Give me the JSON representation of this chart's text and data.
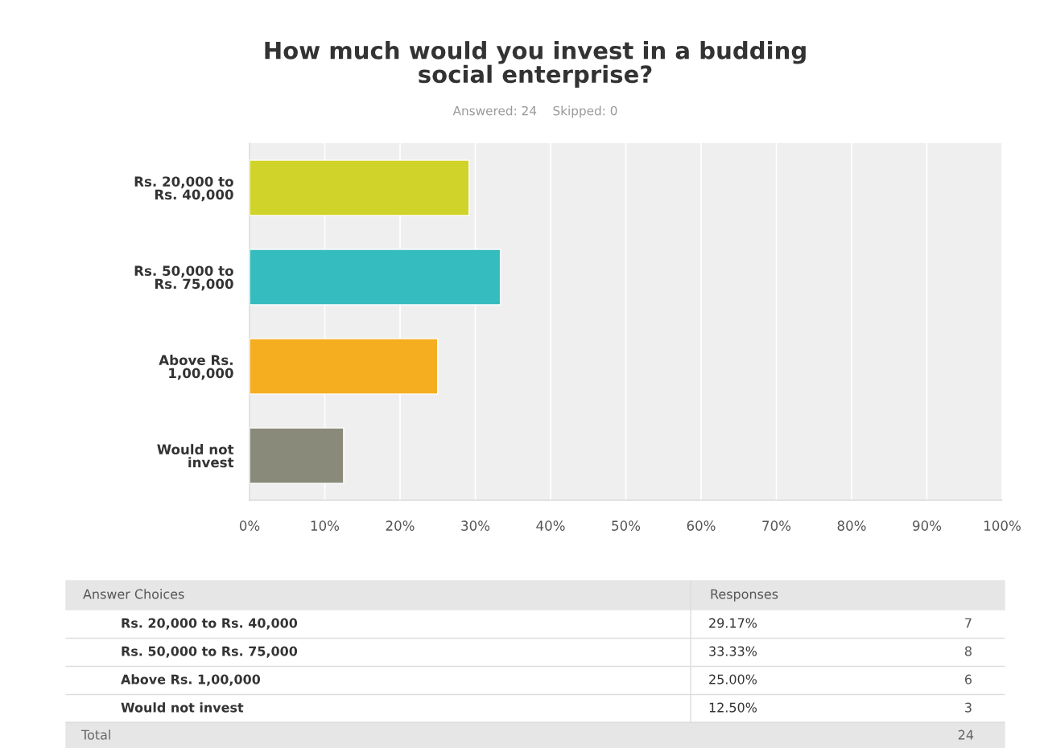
{
  "chart_data": {
    "type": "bar",
    "orientation": "horizontal",
    "title": "How much would you invest in a budding\nsocial enterprise?",
    "subtitle": "Answered: 24    Skipped: 0",
    "categories": [
      "Rs. 20,000 to\nRs. 40,000",
      "Rs. 50,000 to\nRs. 75,000",
      "Above Rs.\n1,00,000",
      "Would not\ninvest"
    ],
    "values": [
      29.17,
      33.33,
      25.0,
      12.5
    ],
    "colors": [
      "#d0d32a",
      "#35bcbf",
      "#f4ae1f",
      "#8a8a7a"
    ],
    "xlim": [
      0,
      100
    ],
    "xticks": [
      {
        "value": 0,
        "label": "0%"
      },
      {
        "value": 10,
        "label": "10%"
      },
      {
        "value": 20,
        "label": "20%"
      },
      {
        "value": 30,
        "label": "30%"
      },
      {
        "value": 40,
        "label": "40%"
      },
      {
        "value": 50,
        "label": "50%"
      },
      {
        "value": 60,
        "label": "60%"
      },
      {
        "value": 70,
        "label": "70%"
      },
      {
        "value": 80,
        "label": "80%"
      },
      {
        "value": 90,
        "label": "90%"
      },
      {
        "value": 100,
        "label": "100%"
      }
    ],
    "grid": "x",
    "annotations": [
      "Answer Choices",
      "Responses",
      "Rs. 20,000 to Rs. 40,000",
      "29.17%",
      "7",
      "Rs. 50,000 to Rs. 75,000",
      "33.33%",
      "8",
      "Above Rs. 1,00,000",
      "25.00%",
      "6",
      "Would not invest",
      "12.50%",
      "3",
      "Total",
      "24"
    ]
  }
}
